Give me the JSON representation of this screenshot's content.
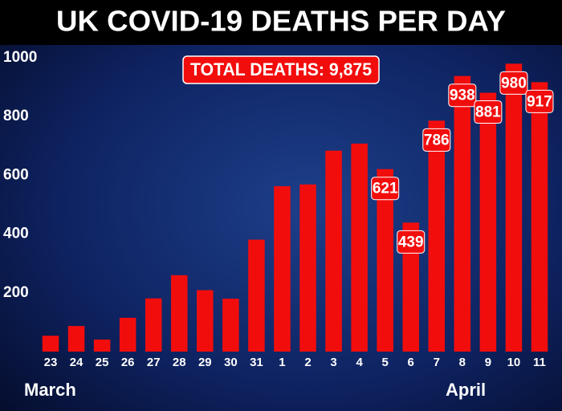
{
  "chart_data": {
    "type": "bar",
    "title": "UK COVID-19 DEATHS PER DAY",
    "annotation": "TOTAL DEATHS: 9,875",
    "categories": [
      "23",
      "24",
      "25",
      "26",
      "27",
      "28",
      "29",
      "30",
      "31",
      "1",
      "2",
      "3",
      "4",
      "5",
      "6",
      "7",
      "8",
      "9",
      "10",
      "11"
    ],
    "values": [
      54,
      87,
      41,
      115,
      181,
      260,
      209,
      180,
      381,
      563,
      569,
      684,
      708,
      621,
      439,
      786,
      938,
      881,
      980,
      917
    ],
    "value_labels": [
      null,
      null,
      null,
      null,
      null,
      null,
      null,
      null,
      null,
      null,
      null,
      null,
      null,
      "621",
      "439",
      "786",
      "938",
      "881",
      "980",
      "917"
    ],
    "x_group_labels": [
      "March",
      "April"
    ],
    "color": "#f20d0d",
    "ylim": [
      0,
      1000
    ],
    "yticks": [
      200,
      400,
      600,
      800,
      1000
    ],
    "grid": false
  }
}
